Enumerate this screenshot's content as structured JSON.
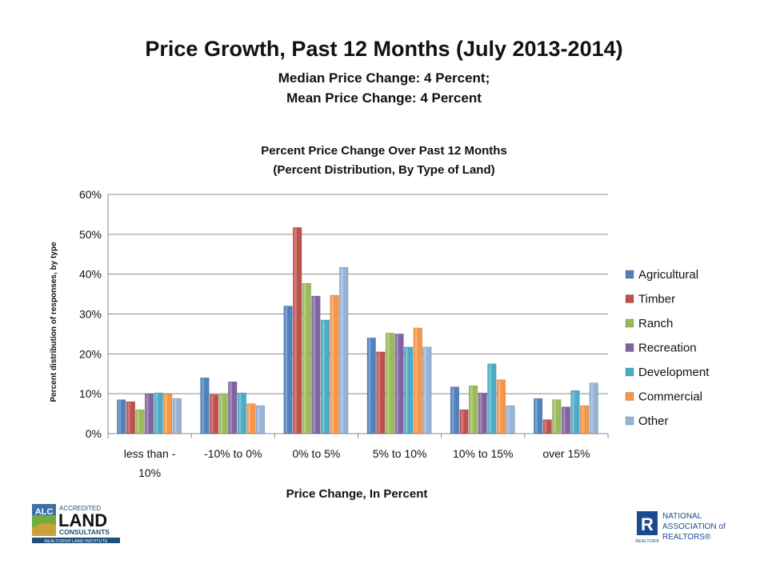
{
  "slide": {
    "title": "Price Growth, Past 12 Months (July 2013-2014)",
    "subtitle_line1": "Median Price Change:  4 Percent;",
    "subtitle_line2": "Mean Price Change:  4 Percent"
  },
  "logos": {
    "alc_left": "ALC",
    "alc_line1": "ACCREDITED",
    "alc_line2": "LAND",
    "alc_line3": "CONSULTANTS",
    "alc_bottom": "REALTORS® LAND INSTITUTE",
    "nar_line1": "NATIONAL",
    "nar_line2": "ASSOCIATION of",
    "nar_line3": "REALTORS®",
    "nar_mark": "R",
    "nar_small": "REALTOR®"
  },
  "chart_data": {
    "type": "bar",
    "title_line1": "Percent Price Change Over Past 12 Months",
    "title_line2": "(Percent Distribution, By Type of Land)",
    "xlabel": "Price Change, In Percent",
    "ylabel": "Percent distribution of responses, by type",
    "ylim": [
      0,
      60
    ],
    "yticks": [
      "0%",
      "10%",
      "20%",
      "30%",
      "40%",
      "50%",
      "60%"
    ],
    "grid": true,
    "legend_position": "right",
    "categories": [
      [
        "less than -",
        "10%"
      ],
      [
        "-10% to 0%"
      ],
      [
        "0% to 5%"
      ],
      [
        "5% to 10%"
      ],
      [
        "10% to 15%"
      ],
      [
        "over 15%"
      ]
    ],
    "series": [
      {
        "name": "Agricultural",
        "color": "#4F81BD",
        "values": [
          8.5,
          14,
          32,
          24,
          11.7,
          8.8
        ]
      },
      {
        "name": "Timber",
        "color": "#C0504D",
        "values": [
          8,
          9.8,
          51.7,
          20.5,
          6,
          3.5
        ]
      },
      {
        "name": "Ranch",
        "color": "#9BBB59",
        "values": [
          6,
          9.8,
          37.7,
          25.2,
          12,
          8.5
        ]
      },
      {
        "name": "Recreation",
        "color": "#8064A2",
        "values": [
          10,
          13,
          34.5,
          25,
          10.2,
          6.7
        ]
      },
      {
        "name": "Development",
        "color": "#4BACC6",
        "values": [
          10.2,
          10.2,
          28.5,
          21.7,
          17.5,
          10.8
        ]
      },
      {
        "name": "Commercial",
        "color": "#F79646",
        "values": [
          10,
          7.5,
          34.7,
          26.5,
          13.5,
          7
        ]
      },
      {
        "name": "Other",
        "color": "#95B3D7",
        "values": [
          8.8,
          7,
          41.7,
          21.7,
          7,
          12.7
        ]
      }
    ]
  }
}
